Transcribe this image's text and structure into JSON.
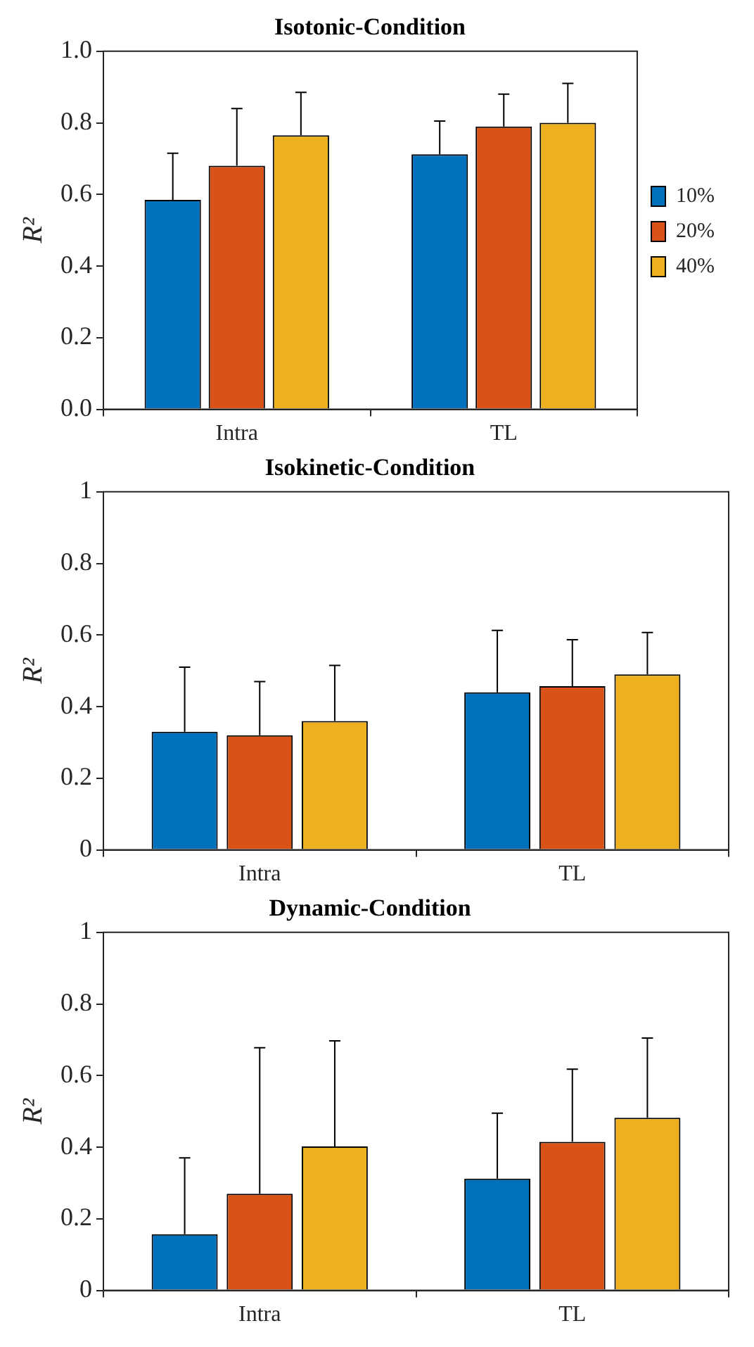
{
  "chart_data": [
    {
      "type": "bar",
      "title": "Isotonic-Condition",
      "ylabel": "R²",
      "categories": [
        "Intra",
        "TL"
      ],
      "ylim": [
        0,
        1
      ],
      "yticks": [
        {
          "value": 0,
          "label": "0.0"
        },
        {
          "value": 0.2,
          "label": "0.2"
        },
        {
          "value": 0.4,
          "label": "0.4"
        },
        {
          "value": 0.6,
          "label": "0.6"
        },
        {
          "value": 0.8,
          "label": "0.8"
        },
        {
          "value": 1,
          "label": "1.0"
        }
      ],
      "grid": false,
      "legend": "right",
      "series": [
        {
          "name": "10%",
          "color": "#0072bd",
          "values": [
            0.585,
            0.712
          ],
          "errors": [
            [
              0.585,
              0.715
            ],
            [
              0.712,
              0.805
            ]
          ]
        },
        {
          "name": "20%",
          "color": "#d95319",
          "values": [
            0.68,
            0.79
          ],
          "errors": [
            [
              0.68,
              0.84
            ],
            [
              0.79,
              0.88
            ]
          ]
        },
        {
          "name": "40%",
          "color": "#edb120",
          "values": [
            0.765,
            0.8
          ],
          "errors": [
            [
              0.765,
              0.885
            ],
            [
              0.8,
              0.91
            ]
          ]
        }
      ]
    },
    {
      "type": "bar",
      "title": "Isokinetic-Condition",
      "ylabel": "R²",
      "categories": [
        "Intra",
        "TL"
      ],
      "ylim": [
        0,
        1
      ],
      "yticks": [
        0,
        0.2,
        0.4,
        0.6,
        0.8,
        1
      ],
      "grid": false,
      "series": [
        {
          "color": "#0072bd",
          "values": [
            0.33,
            0.44
          ],
          "errors": [
            [
              0.33,
              0.51
            ],
            [
              0.44,
              0.613
            ]
          ]
        },
        {
          "color": "#d95319",
          "values": [
            0.32,
            0.457
          ],
          "errors": [
            [
              0.32,
              0.47
            ],
            [
              0.457,
              0.587
            ]
          ]
        },
        {
          "color": "#edb120",
          "values": [
            0.36,
            0.49
          ],
          "errors": [
            [
              0.36,
              0.515
            ],
            [
              0.49,
              0.607
            ]
          ]
        }
      ]
    },
    {
      "type": "bar",
      "title": "Dynamic-Condition",
      "ylabel": "R²",
      "categories": [
        "Intra",
        "TL"
      ],
      "ylim": [
        0,
        1
      ],
      "yticks": [
        0,
        0.2,
        0.4,
        0.6,
        0.8,
        1
      ],
      "grid": false,
      "series": [
        {
          "color": "#0072bd",
          "values": [
            0.157,
            0.312
          ],
          "errors": [
            [
              0.157,
              0.37
            ],
            [
              0.312,
              0.495
            ]
          ]
        },
        {
          "color": "#d95319",
          "values": [
            0.27,
            0.415
          ],
          "errors": [
            [
              0.27,
              0.678
            ],
            [
              0.415,
              0.618
            ]
          ]
        },
        {
          "color": "#edb120",
          "values": [
            0.402,
            0.482
          ],
          "errors": [
            [
              0.402,
              0.697
            ],
            [
              0.482,
              0.705
            ]
          ]
        }
      ]
    }
  ]
}
